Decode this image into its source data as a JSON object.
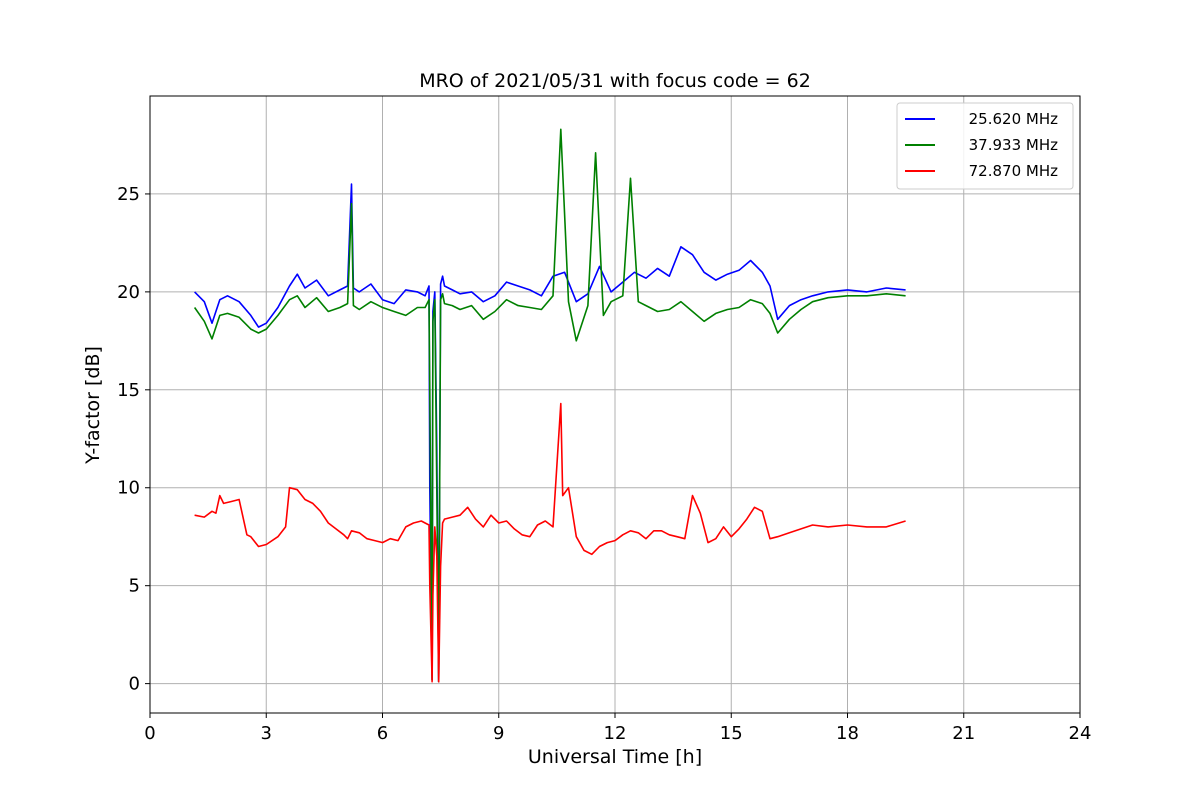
{
  "chart_data": {
    "type": "line",
    "title": "MRO of 2021/05/31 with focus code = 62",
    "xlabel": "Universal Time [h]",
    "ylabel": "Y-factor [dB]",
    "xlim": [
      0,
      24
    ],
    "ylim": [
      -1.5,
      30
    ],
    "xticks": [
      0,
      3,
      6,
      9,
      12,
      15,
      18,
      21,
      24
    ],
    "yticks": [
      0,
      5,
      10,
      15,
      20,
      25
    ],
    "grid": true,
    "legend_position": "top-right",
    "series": [
      {
        "name": "25.620 MHz",
        "color": "#0000ff",
        "x": [
          1.15,
          1.4,
          1.6,
          1.8,
          2.0,
          2.3,
          2.6,
          2.8,
          3.0,
          3.3,
          3.6,
          3.8,
          4.0,
          4.3,
          4.6,
          4.9,
          5.1,
          5.2,
          5.25,
          5.4,
          5.7,
          6.0,
          6.3,
          6.6,
          6.9,
          7.1,
          7.2,
          7.22,
          7.28,
          7.3,
          7.35,
          7.4,
          7.45,
          7.5,
          7.55,
          7.6,
          7.8,
          8.0,
          8.3,
          8.6,
          8.9,
          9.2,
          9.5,
          9.8,
          10.1,
          10.4,
          10.7,
          11.0,
          11.3,
          11.6,
          11.9,
          12.2,
          12.5,
          12.8,
          13.1,
          13.4,
          13.7,
          14.0,
          14.3,
          14.6,
          14.9,
          15.2,
          15.5,
          15.8,
          16.0,
          16.2,
          16.5,
          16.8,
          17.1,
          17.5,
          18.0,
          18.5,
          19.0,
          19.5
        ],
        "y": [
          20.0,
          19.5,
          18.4,
          19.6,
          19.8,
          19.5,
          18.8,
          18.2,
          18.4,
          19.2,
          20.3,
          20.9,
          20.2,
          20.6,
          19.8,
          20.1,
          20.3,
          25.5,
          20.2,
          20.0,
          20.4,
          19.6,
          19.4,
          20.1,
          20.0,
          19.8,
          20.3,
          10.0,
          0.2,
          19.0,
          20.0,
          12.0,
          0.1,
          20.4,
          20.8,
          20.3,
          20.1,
          19.9,
          20.0,
          19.5,
          19.8,
          20.5,
          20.3,
          20.1,
          19.8,
          20.8,
          21.0,
          19.5,
          19.9,
          21.3,
          20.0,
          20.5,
          21.0,
          20.7,
          21.2,
          20.8,
          22.3,
          21.9,
          21.0,
          20.6,
          20.9,
          21.1,
          21.6,
          21.0,
          20.3,
          18.6,
          19.3,
          19.6,
          19.8,
          20.0,
          20.1,
          20.0,
          20.2,
          20.1
        ]
      },
      {
        "name": "37.933 MHz",
        "color": "#008000",
        "x": [
          1.15,
          1.4,
          1.6,
          1.8,
          2.0,
          2.3,
          2.6,
          2.8,
          3.0,
          3.3,
          3.6,
          3.8,
          4.0,
          4.3,
          4.6,
          4.9,
          5.1,
          5.2,
          5.25,
          5.4,
          5.7,
          6.0,
          6.3,
          6.6,
          6.9,
          7.1,
          7.2,
          7.22,
          7.28,
          7.3,
          7.35,
          7.4,
          7.45,
          7.5,
          7.55,
          7.6,
          7.8,
          8.0,
          8.3,
          8.6,
          8.9,
          9.2,
          9.5,
          9.8,
          10.1,
          10.4,
          10.6,
          10.8,
          11.0,
          11.3,
          11.5,
          11.7,
          11.9,
          12.2,
          12.4,
          12.6,
          12.8,
          13.1,
          13.4,
          13.7,
          14.0,
          14.3,
          14.6,
          14.9,
          15.2,
          15.5,
          15.8,
          16.0,
          16.2,
          16.5,
          16.8,
          17.1,
          17.5,
          18.0,
          18.5,
          19.0,
          19.5
        ],
        "y": [
          19.2,
          18.5,
          17.6,
          18.8,
          18.9,
          18.7,
          18.1,
          17.9,
          18.1,
          18.8,
          19.6,
          19.8,
          19.2,
          19.7,
          19.0,
          19.2,
          19.4,
          24.5,
          19.3,
          19.1,
          19.5,
          19.2,
          19.0,
          18.8,
          19.2,
          19.2,
          19.6,
          15.0,
          0.2,
          18.5,
          19.6,
          10.0,
          0.1,
          19.6,
          19.9,
          19.4,
          19.3,
          19.1,
          19.3,
          18.6,
          19.0,
          19.6,
          19.3,
          19.2,
          19.1,
          19.8,
          28.3,
          19.5,
          17.5,
          19.3,
          27.1,
          18.8,
          19.5,
          19.8,
          25.8,
          19.5,
          19.3,
          19.0,
          19.1,
          19.5,
          19.0,
          18.5,
          18.9,
          19.1,
          19.2,
          19.6,
          19.4,
          18.9,
          17.9,
          18.6,
          19.1,
          19.5,
          19.7,
          19.8,
          19.8,
          19.9,
          19.8
        ]
      },
      {
        "name": "72.870 MHz",
        "color": "#ff0000",
        "x": [
          1.15,
          1.4,
          1.6,
          1.7,
          1.8,
          1.9,
          2.1,
          2.3,
          2.5,
          2.6,
          2.8,
          3.0,
          3.3,
          3.5,
          3.6,
          3.8,
          4.0,
          4.2,
          4.4,
          4.6,
          4.8,
          5.0,
          5.1,
          5.2,
          5.4,
          5.6,
          5.8,
          6.0,
          6.2,
          6.4,
          6.6,
          6.8,
          7.0,
          7.1,
          7.2,
          7.22,
          7.28,
          7.3,
          7.35,
          7.4,
          7.45,
          7.5,
          7.55,
          7.6,
          7.8,
          8.0,
          8.2,
          8.4,
          8.6,
          8.8,
          9.0,
          9.2,
          9.4,
          9.6,
          9.8,
          10.0,
          10.2,
          10.4,
          10.6,
          10.65,
          10.8,
          11.0,
          11.2,
          11.4,
          11.6,
          11.8,
          12.0,
          12.2,
          12.4,
          12.6,
          12.8,
          13.0,
          13.2,
          13.4,
          13.6,
          13.8,
          14.0,
          14.2,
          14.4,
          14.6,
          14.8,
          15.0,
          15.2,
          15.4,
          15.6,
          15.8,
          16.0,
          16.2,
          16.5,
          16.8,
          17.1,
          17.5,
          18.0,
          18.5,
          19.0,
          19.5
        ],
        "y": [
          8.6,
          8.5,
          8.8,
          8.7,
          9.6,
          9.2,
          9.3,
          9.4,
          7.6,
          7.5,
          7.0,
          7.1,
          7.5,
          8.0,
          10.0,
          9.9,
          9.4,
          9.2,
          8.8,
          8.2,
          7.9,
          7.6,
          7.4,
          7.8,
          7.7,
          7.4,
          7.3,
          7.2,
          7.4,
          7.3,
          8.0,
          8.2,
          8.3,
          8.2,
          8.1,
          5.0,
          0.1,
          4.5,
          8.0,
          6.5,
          0.1,
          6.0,
          8.2,
          8.4,
          8.5,
          8.6,
          9.0,
          8.4,
          8.0,
          8.6,
          8.2,
          8.3,
          7.9,
          7.6,
          7.5,
          8.1,
          8.3,
          8.0,
          14.3,
          9.6,
          10.0,
          7.5,
          6.8,
          6.6,
          7.0,
          7.2,
          7.3,
          7.6,
          7.8,
          7.7,
          7.4,
          7.8,
          7.8,
          7.6,
          7.5,
          7.4,
          9.6,
          8.7,
          7.2,
          7.4,
          8.0,
          7.5,
          7.9,
          8.4,
          9.0,
          8.8,
          7.4,
          7.5,
          7.7,
          7.9,
          8.1,
          8.0,
          8.1,
          8.0,
          8.0,
          8.3
        ]
      }
    ]
  }
}
